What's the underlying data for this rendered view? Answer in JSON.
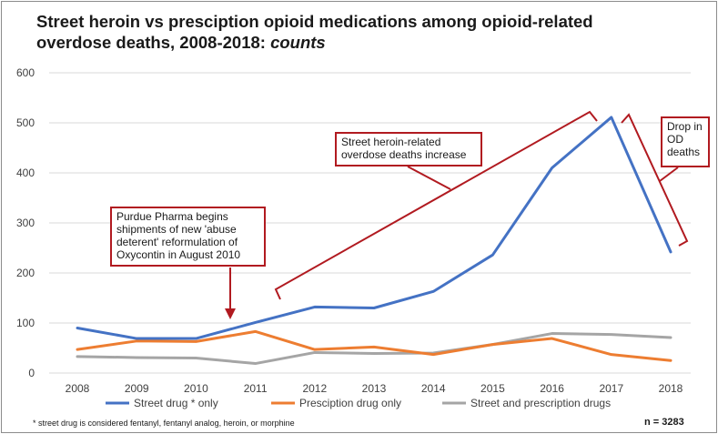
{
  "title_main": "Street heroin vs presciption opioid medications among opioid-related overdose deaths, 2008-2018:",
  "title_italic": "counts",
  "chart_data": {
    "type": "line",
    "x": [
      "2008",
      "2009",
      "2010",
      "2011",
      "2012",
      "2013",
      "2014",
      "2015",
      "2016",
      "2017",
      "2018"
    ],
    "ylim": [
      0,
      600
    ],
    "yticks": [
      "0",
      "100",
      "200",
      "300",
      "400",
      "500",
      "600"
    ],
    "grid": true,
    "legend_position": "bottom",
    "series": [
      {
        "name": "Street drug * only",
        "color": "#4472c4",
        "values": [
          90,
          69,
          69,
          101,
          132,
          130,
          163,
          236,
          410,
          511,
          242
        ]
      },
      {
        "name": "Presciption drug only",
        "color": "#ed7d31",
        "values": [
          47,
          64,
          63,
          83,
          47,
          52,
          37,
          57,
          69,
          37,
          25
        ]
      },
      {
        "name": "Street and prescription drugs",
        "color": "#a5a5a5",
        "values": [
          33,
          31,
          30,
          19,
          41,
          39,
          40,
          57,
          79,
          77,
          71
        ]
      }
    ],
    "annotations": [
      {
        "id": "purdue",
        "lines": [
          "Purdue Pharma begins",
          "shipments of new 'abuse",
          "deterent' reformulation  of",
          "Oxycontin in August 2010"
        ]
      },
      {
        "id": "increase",
        "lines": [
          "Street heroin-related",
          "overdose deaths increase"
        ]
      },
      {
        "id": "drop",
        "lines": [
          "Drop in",
          "OD",
          "deaths"
        ]
      }
    ]
  },
  "footnote": "* street drug is considered fentanyl, fentanyl analog, heroin, or morphine",
  "n_label": "n = 3283",
  "annotation_color": "#b11a20"
}
